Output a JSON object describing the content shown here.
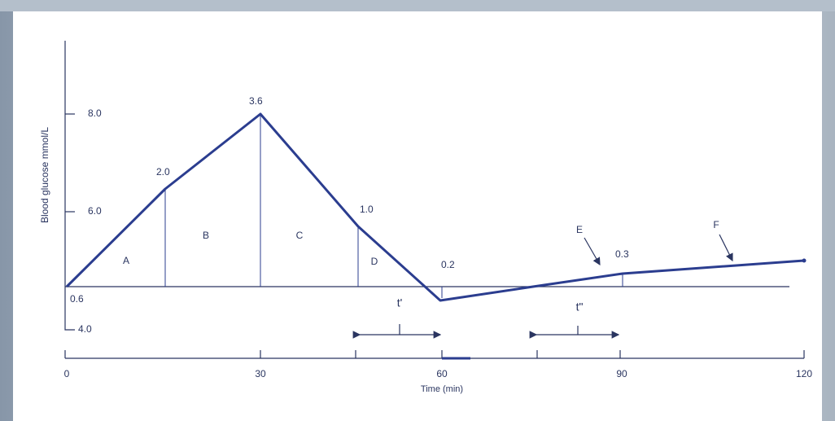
{
  "axis": {
    "y_title": "Blood glucose mmol/L",
    "y_ticks": [
      "8.0",
      "6.0",
      "4.0"
    ],
    "x_title": "Time (min)",
    "x_ticks": [
      "0",
      "30",
      "60",
      "90",
      "120"
    ]
  },
  "point_labels": [
    "0.6",
    "2.0",
    "3.6",
    "1.0",
    "0.2",
    "0.3"
  ],
  "regions": [
    "A",
    "B",
    "C",
    "D",
    "E",
    "F"
  ],
  "intervals": [
    "t'",
    "t\""
  ]
}
